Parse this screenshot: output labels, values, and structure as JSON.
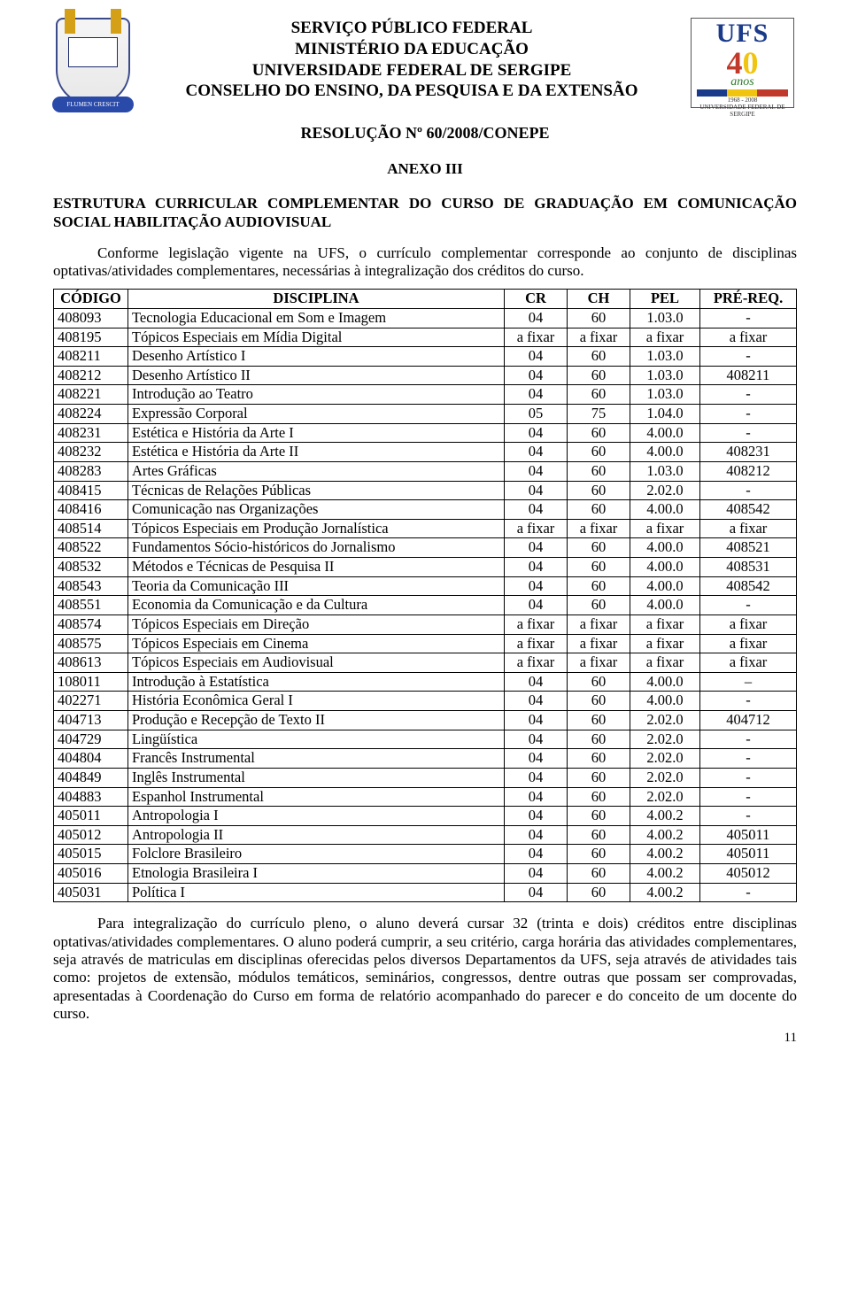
{
  "header": {
    "line1": "SERVIÇO PÚBLICO FEDERAL",
    "line2": "MINISTÉRIO DA EDUCAÇÃO",
    "line3": "UNIVERSIDADE FEDERAL DE SERGIPE",
    "line4": "CONSELHO DO ENSINO, DA PESQUISA E DA EXTENSÃO",
    "resolution": "RESOLUÇÃO Nº 60/2008/CONEPE",
    "anexo": "ANEXO III",
    "shield_banner": "FLUMEN CRESCIT",
    "ufs_label": "UFS",
    "ufs_4": "4",
    "ufs_0": "0",
    "ufs_anos": "anos",
    "ufs_years": "1968 - 2008",
    "ufs_sub": "UNIVERSIDADE FEDERAL DE SERGIPE"
  },
  "section_title": "ESTRUTURA CURRICULAR COMPLEMENTAR DO CURSO DE GRADUAÇÃO EM COMUNICAÇÃO SOCIAL HABILITAÇÃO AUDIOVISUAL",
  "intro": "Conforme legislação vigente na UFS, o currículo complementar corresponde ao conjunto de disciplinas optativas/atividades complementares, necessárias à integralização dos créditos do curso.",
  "table": {
    "headers": {
      "codigo": "CÓDIGO",
      "disciplina": "DISCIPLINA",
      "cr": "CR",
      "ch": "CH",
      "pel": "PEL",
      "prereq": "PRÉ-REQ."
    },
    "rows": [
      {
        "codigo": "408093",
        "disciplina": "Tecnologia Educacional em Som e Imagem",
        "cr": "04",
        "ch": "60",
        "pel": "1.03.0",
        "prereq": "-"
      },
      {
        "codigo": "408195",
        "disciplina": "Tópicos Especiais em Mídia Digital",
        "cr": "a fixar",
        "ch": "a fixar",
        "pel": "a fixar",
        "prereq": "a fixar"
      },
      {
        "codigo": "408211",
        "disciplina": "Desenho Artístico I",
        "cr": "04",
        "ch": "60",
        "pel": "1.03.0",
        "prereq": "-"
      },
      {
        "codigo": "408212",
        "disciplina": "Desenho Artístico II",
        "cr": "04",
        "ch": "60",
        "pel": "1.03.0",
        "prereq": "408211"
      },
      {
        "codigo": "408221",
        "disciplina": "Introdução ao Teatro",
        "cr": "04",
        "ch": "60",
        "pel": "1.03.0",
        "prereq": "-"
      },
      {
        "codigo": "408224",
        "disciplina": "Expressão Corporal",
        "cr": "05",
        "ch": "75",
        "pel": "1.04.0",
        "prereq": "-"
      },
      {
        "codigo": "408231",
        "disciplina": "Estética e História da Arte I",
        "cr": "04",
        "ch": "60",
        "pel": "4.00.0",
        "prereq": "-"
      },
      {
        "codigo": "408232",
        "disciplina": "Estética e História da Arte II",
        "cr": "04",
        "ch": "60",
        "pel": "4.00.0",
        "prereq": "408231"
      },
      {
        "codigo": "408283",
        "disciplina": "Artes Gráficas",
        "cr": "04",
        "ch": "60",
        "pel": "1.03.0",
        "prereq": "408212"
      },
      {
        "codigo": "408415",
        "disciplina": "Técnicas de Relações Públicas",
        "cr": "04",
        "ch": "60",
        "pel": "2.02.0",
        "prereq": "-"
      },
      {
        "codigo": "408416",
        "disciplina": "Comunicação nas Organizações",
        "cr": "04",
        "ch": "60",
        "pel": "4.00.0",
        "prereq": "408542"
      },
      {
        "codigo": "408514",
        "disciplina": "Tópicos Especiais em Produção Jornalística",
        "cr": "a fixar",
        "ch": "a fixar",
        "pel": "a fixar",
        "prereq": "a fixar"
      },
      {
        "codigo": "408522",
        "disciplina": "Fundamentos Sócio-históricos do Jornalismo",
        "cr": "04",
        "ch": "60",
        "pel": "4.00.0",
        "prereq": "408521"
      },
      {
        "codigo": "408532",
        "disciplina": "Métodos e Técnicas de Pesquisa II",
        "cr": "04",
        "ch": "60",
        "pel": "4.00.0",
        "prereq": "408531"
      },
      {
        "codigo": "408543",
        "disciplina": "Teoria da Comunicação III",
        "cr": "04",
        "ch": "60",
        "pel": "4.00.0",
        "prereq": "408542"
      },
      {
        "codigo": "408551",
        "disciplina": "Economia da Comunicação e da Cultura",
        "cr": "04",
        "ch": "60",
        "pel": "4.00.0",
        "prereq": "-"
      },
      {
        "codigo": "408574",
        "disciplina": "Tópicos Especiais em Direção",
        "cr": "a fixar",
        "ch": "a fixar",
        "pel": "a fixar",
        "prereq": "a fixar"
      },
      {
        "codigo": "408575",
        "disciplina": "Tópicos Especiais em Cinema",
        "cr": "a fixar",
        "ch": "a fixar",
        "pel": "a fixar",
        "prereq": "a fixar"
      },
      {
        "codigo": "408613",
        "disciplina": "Tópicos Especiais em Audiovisual",
        "cr": "a fixar",
        "ch": "a fixar",
        "pel": "a fixar",
        "prereq": "a fixar"
      },
      {
        "codigo": "108011",
        "disciplina": "Introdução à Estatística",
        "cr": "04",
        "ch": "60",
        "pel": "4.00.0",
        "prereq": "–"
      },
      {
        "codigo": "402271",
        "disciplina": "História Econômica Geral I",
        "cr": "04",
        "ch": "60",
        "pel": "4.00.0",
        "prereq": "-"
      },
      {
        "codigo": "404713",
        "disciplina": "Produção e Recepção de Texto II",
        "cr": "04",
        "ch": "60",
        "pel": "2.02.0",
        "prereq": "404712"
      },
      {
        "codigo": "404729",
        "disciplina": "Lingüística",
        "cr": "04",
        "ch": "60",
        "pel": "2.02.0",
        "prereq": "-"
      },
      {
        "codigo": "404804",
        "disciplina": "Francês Instrumental",
        "cr": "04",
        "ch": "60",
        "pel": "2.02.0",
        "prereq": "-"
      },
      {
        "codigo": "404849",
        "disciplina": "Inglês Instrumental",
        "cr": "04",
        "ch": "60",
        "pel": "2.02.0",
        "prereq": "-"
      },
      {
        "codigo": "404883",
        "disciplina": "Espanhol Instrumental",
        "cr": "04",
        "ch": "60",
        "pel": "2.02.0",
        "prereq": "-"
      },
      {
        "codigo": "405011",
        "disciplina": "Antropologia I",
        "cr": "04",
        "ch": "60",
        "pel": "4.00.2",
        "prereq": "-"
      },
      {
        "codigo": "405012",
        "disciplina": "Antropologia II",
        "cr": "04",
        "ch": "60",
        "pel": "4.00.2",
        "prereq": "405011"
      },
      {
        "codigo": "405015",
        "disciplina": "Folclore Brasileiro",
        "cr": "04",
        "ch": "60",
        "pel": "4.00.2",
        "prereq": "405011"
      },
      {
        "codigo": "405016",
        "disciplina": "Etnologia Brasileira I",
        "cr": "04",
        "ch": "60",
        "pel": "4.00.2",
        "prereq": "405012"
      },
      {
        "codigo": "405031",
        "disciplina": "Política I",
        "cr": "04",
        "ch": "60",
        "pel": "4.00.2",
        "prereq": "-"
      }
    ]
  },
  "footer_para": "Para integralização do currículo pleno, o aluno deverá cursar 32 (trinta e dois) créditos entre disciplinas optativas/atividades complementares. O aluno poderá cumprir, a seu critério, carga horária das atividades complementares, seja através de matriculas em disciplinas oferecidas pelos diversos Departamentos da UFS, seja através de atividades tais como: projetos de extensão, módulos temáticos, seminários, congressos, dentre outras que possam ser comprovadas, apresentadas à Coordenação do Curso em forma de relatório acompanhado do parecer e do conceito de um docente do curso.",
  "page_number": "11"
}
